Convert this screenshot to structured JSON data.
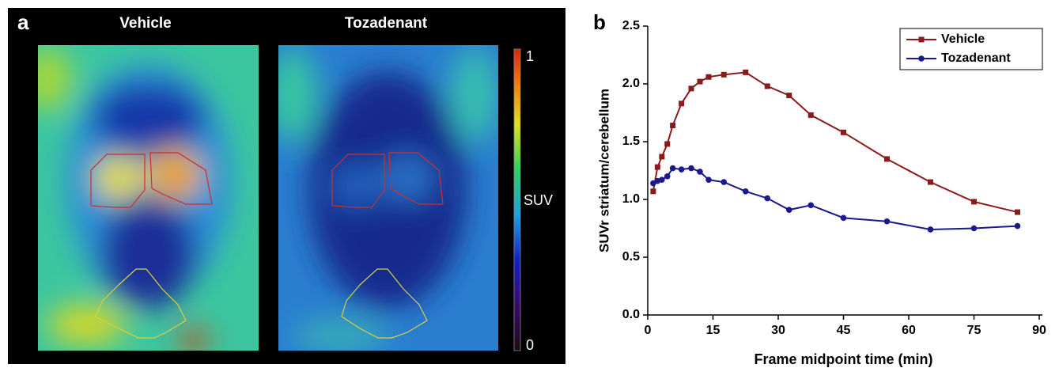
{
  "chart_data": [
    {
      "type": "heatmap-image",
      "panel": "a",
      "titles": [
        "Vehicle",
        "Tozadenant"
      ],
      "colorbar": {
        "label": "SUV",
        "clim": [
          0,
          1
        ],
        "ticks": [
          0,
          1
        ]
      }
    },
    {
      "type": "line",
      "panel": "b",
      "x_label": "Frame midpoint time (min)",
      "y_label": "SUVr striatum/cerebellum",
      "xlim": [
        0,
        90
      ],
      "xticks": [
        0,
        15,
        30,
        45,
        60,
        75,
        90
      ],
      "ylim": [
        0,
        2.5
      ],
      "yticks": [
        {
          "value": 0,
          "label": "0.0"
        },
        {
          "value": 0.5,
          "label": "0.5"
        },
        {
          "value": 1,
          "label": "1.0"
        },
        {
          "value": 1.5,
          "label": "1.5"
        },
        {
          "value": 2,
          "label": "2.0"
        },
        {
          "value": 2.5,
          "label": "2.5"
        }
      ],
      "legend": "upper right",
      "x": [
        1.25,
        2.25,
        3.25,
        4.5,
        5.75,
        7.75,
        10,
        12,
        14,
        17.5,
        22.5,
        27.5,
        32.5,
        37.5,
        45,
        55,
        65,
        75,
        85
      ],
      "series": [
        {
          "name": "Vehicle",
          "color": "#8b1a1a",
          "marker": "square",
          "values": [
            1.07,
            1.28,
            1.37,
            1.48,
            1.64,
            1.83,
            1.96,
            2.02,
            2.06,
            2.08,
            2.1,
            1.98,
            1.9,
            1.73,
            1.58,
            1.35,
            1.15,
            0.98,
            0.89
          ]
        },
        {
          "name": "Tozadenant",
          "color": "#1a1a8b",
          "marker": "circle",
          "values": [
            1.14,
            1.16,
            1.17,
            1.2,
            1.27,
            1.26,
            1.27,
            1.24,
            1.17,
            1.15,
            1.07,
            1.01,
            0.91,
            0.95,
            0.84,
            0.81,
            0.74,
            0.75,
            0.77
          ]
        }
      ]
    }
  ]
}
